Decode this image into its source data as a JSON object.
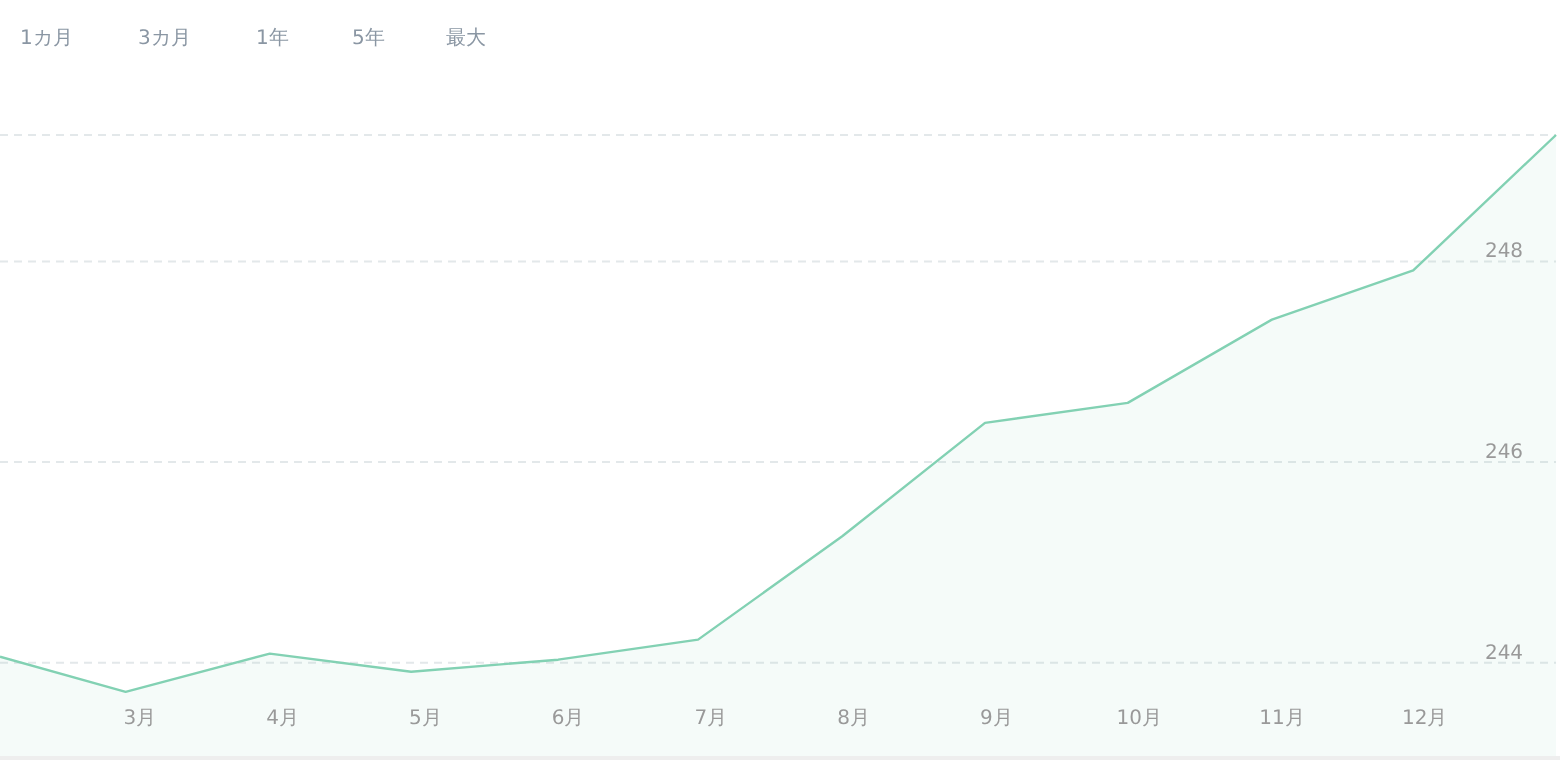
{
  "chart_data": {
    "type": "area",
    "annotations": [
      "1カ月",
      "3カ月",
      "1年",
      "5年",
      "最大"
    ],
    "x": [
      2.02,
      2.9,
      3.91,
      4.9,
      5.93,
      6.91,
      7.92,
      8.92,
      9.92,
      10.93,
      11.92,
      12.92
    ],
    "series": [
      {
        "color": "#82d1b3",
        "values": [
          244.06,
          243.71,
          244.09,
          243.91,
          244.03,
          244.23,
          245.26,
          246.39,
          246.59,
          247.42,
          247.91,
          249.26
        ]
      }
    ],
    "xlim": [
      2.02,
      12.92
    ],
    "ylim": [
      243.07,
      249.26
    ],
    "xticks": [
      {
        "value": 3,
        "label": "3月"
      },
      {
        "value": 4,
        "label": "4月"
      },
      {
        "value": 5,
        "label": "5月"
      },
      {
        "value": 6,
        "label": "6月"
      },
      {
        "value": 7,
        "label": "7月"
      },
      {
        "value": 8,
        "label": "8月"
      },
      {
        "value": 9,
        "label": "9月"
      },
      {
        "value": 10,
        "label": "10月"
      },
      {
        "value": 11,
        "label": "11月"
      },
      {
        "value": 12,
        "label": "12月"
      }
    ],
    "yticks": [
      244,
      246,
      248
    ],
    "grid": "y"
  }
}
